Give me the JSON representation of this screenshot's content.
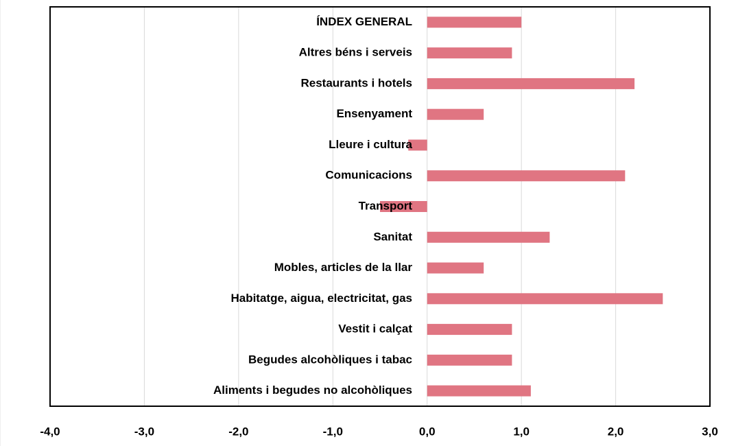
{
  "chart_data": {
    "type": "barh",
    "categories": [
      "ÍNDEX GENERAL",
      "Altres béns i serveis",
      "Restaurants i hotels",
      "Ensenyament",
      "Lleure i cultura",
      "Comunicacions",
      "Transport",
      "Sanitat",
      "Mobles, articles de la llar",
      "Habitatge, aigua, electricitat, gas",
      "Vestit i calçat",
      "Begudes alcohòliques i tabac",
      "Aliments i begudes no alcohòliques"
    ],
    "values": [
      1.0,
      0.9,
      2.2,
      0.6,
      -0.2,
      2.1,
      -0.5,
      1.3,
      0.6,
      2.5,
      0.9,
      0.9,
      1.1
    ],
    "color": "#e07582",
    "xlim": [
      -4,
      3
    ],
    "xticks": [
      {
        "value": -4,
        "label": "-4,0"
      },
      {
        "value": -3,
        "label": "-3,0"
      },
      {
        "value": -2,
        "label": "-2,0"
      },
      {
        "value": -1,
        "label": "-1,0"
      },
      {
        "value": 0,
        "label": "0,0"
      },
      {
        "value": 1,
        "label": "1,0"
      },
      {
        "value": 2,
        "label": "2,0"
      },
      {
        "value": 3,
        "label": "3,0"
      }
    ],
    "grid": true
  }
}
